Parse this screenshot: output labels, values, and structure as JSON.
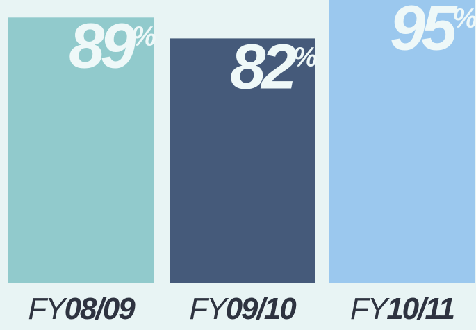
{
  "chart_data": {
    "type": "bar",
    "categories": [
      "FY08/09",
      "FY09/10",
      "FY10/11"
    ],
    "values": [
      89,
      82,
      95
    ],
    "value_labels": [
      "89%",
      "82%",
      "95%"
    ],
    "colors": [
      "#91cacc",
      "#455a7a",
      "#9bc8ee"
    ],
    "ylim": [
      0,
      100
    ]
  }
}
